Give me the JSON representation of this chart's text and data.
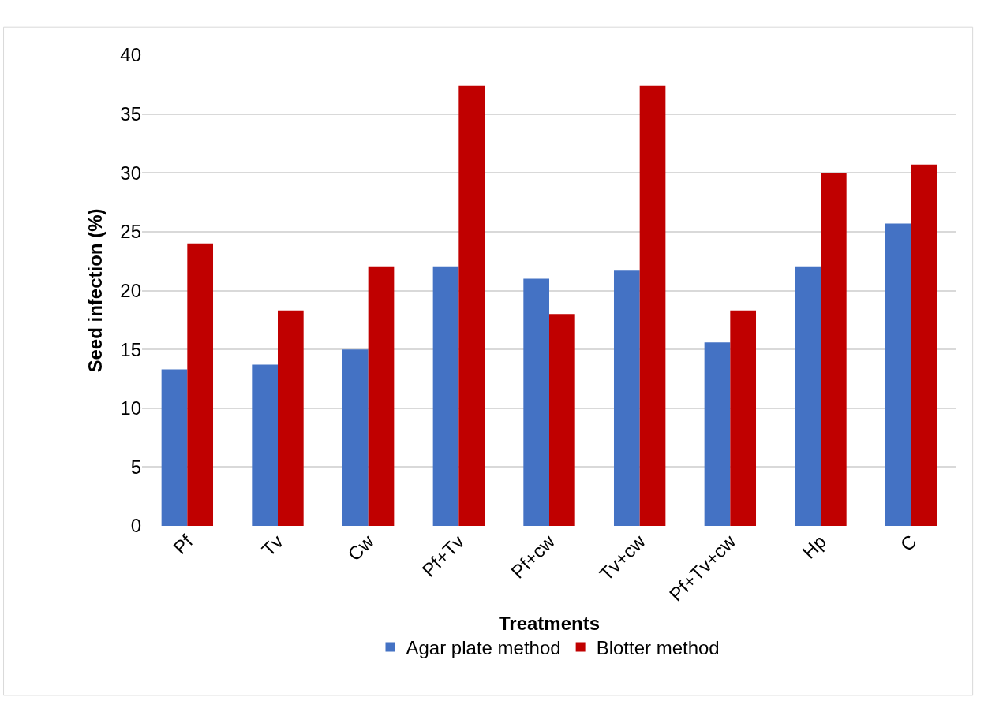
{
  "chart_data": {
    "type": "bar",
    "xlabel": "Treatments",
    "ylabel": "Seed infection (%)",
    "categories": [
      "Pf",
      "Tv",
      "Cw",
      "Pf+Tv",
      "Pf+cw",
      "Tv+cw",
      "Pf+Tv+cw",
      "Hp",
      "C"
    ],
    "series": [
      {
        "name": "Agar plate method",
        "color": "#4472c4",
        "values": [
          13.3,
          13.7,
          15.0,
          22.0,
          21.0,
          21.7,
          15.6,
          22.0,
          25.7
        ]
      },
      {
        "name": "Blotter method",
        "color": "#c00000",
        "values": [
          24.0,
          18.3,
          22.0,
          37.4,
          18.0,
          37.4,
          18.3,
          30.0,
          30.7
        ]
      }
    ],
    "ylim": [
      0,
      40
    ],
    "yticks": [
      0,
      5,
      10,
      15,
      20,
      25,
      30,
      35,
      40
    ],
    "grid": "y",
    "legend": "bottom"
  }
}
